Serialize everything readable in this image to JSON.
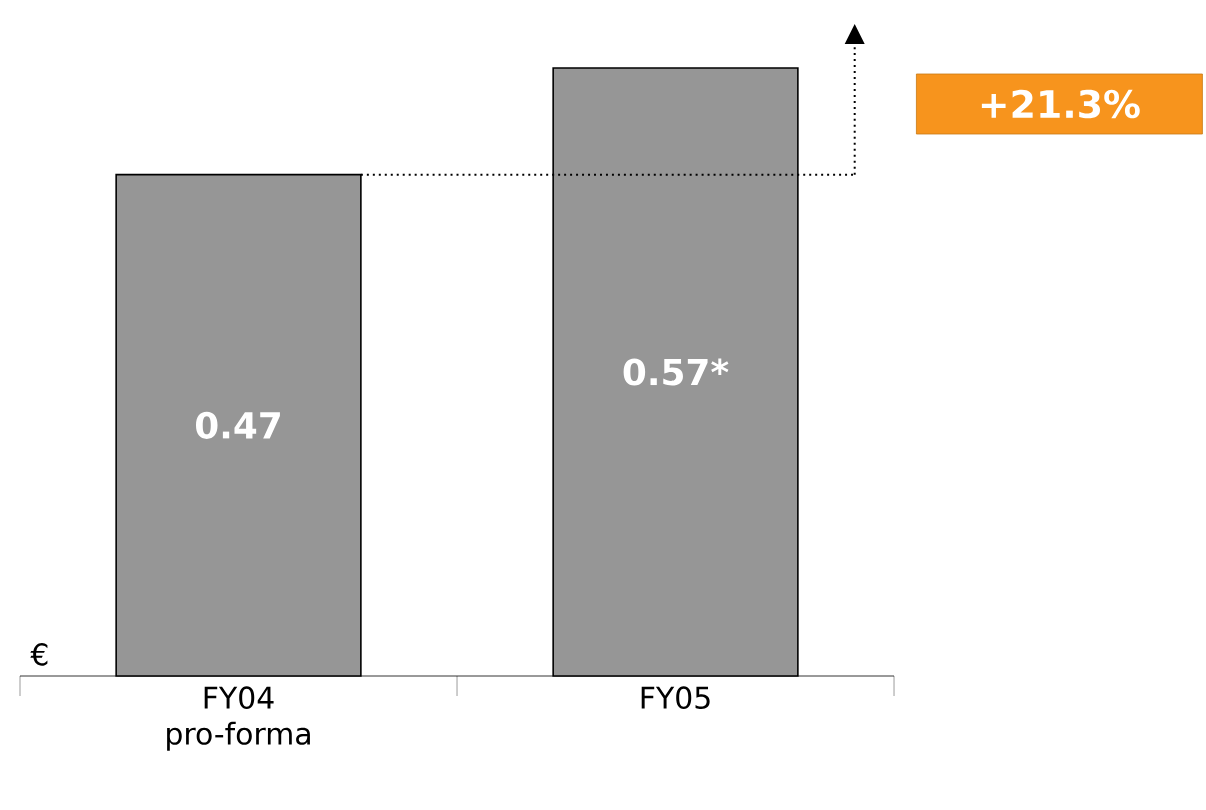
{
  "chart_data": {
    "type": "bar",
    "categories": [
      "FY04 pro-forma",
      "FY05"
    ],
    "values": [
      0.47,
      0.57
    ],
    "color": "#969696",
    "value_labels": [
      "0.47",
      "0.57*"
    ],
    "ylabel": "€",
    "annotations": [
      "+21.3%"
    ],
    "ref_lines": [
      {
        "axis": "y",
        "value": 0.47,
        "line_style": "dotted",
        "color": "#000000"
      }
    ]
  }
}
